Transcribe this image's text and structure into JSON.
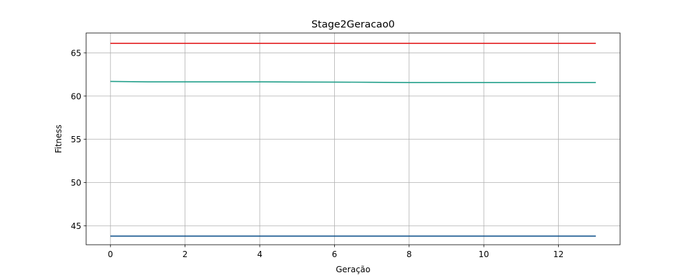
{
  "chart_data": {
    "type": "line",
    "title": "Stage2Geracao0",
    "xlabel": "Geração",
    "ylabel": "Fitness",
    "xlim": [
      -0.65,
      13.65
    ],
    "ylim": [
      42.8,
      67.3
    ],
    "xticks": [
      0,
      2,
      4,
      6,
      8,
      10,
      12
    ],
    "yticks": [
      45,
      50,
      55,
      60,
      65
    ],
    "grid": true,
    "x": [
      0,
      1,
      2,
      3,
      4,
      5,
      6,
      7,
      8,
      9,
      10,
      11,
      12,
      13
    ],
    "series": [
      {
        "color": "#e31a1c",
        "values": [
          66.1,
          66.1,
          66.1,
          66.1,
          66.1,
          66.1,
          66.1,
          66.1,
          66.1,
          66.1,
          66.1,
          66.1,
          66.1,
          66.1
        ]
      },
      {
        "color": "#1f9e89",
        "values": [
          61.7,
          61.65,
          61.65,
          61.65,
          61.65,
          61.63,
          61.62,
          61.6,
          61.57,
          61.57,
          61.57,
          61.57,
          61.57,
          61.57
        ]
      },
      {
        "color": "#0b4f8a",
        "values": [
          43.8,
          43.8,
          43.8,
          43.8,
          43.8,
          43.8,
          43.8,
          43.8,
          43.8,
          43.8,
          43.8,
          43.8,
          43.8,
          43.8
        ]
      }
    ]
  }
}
